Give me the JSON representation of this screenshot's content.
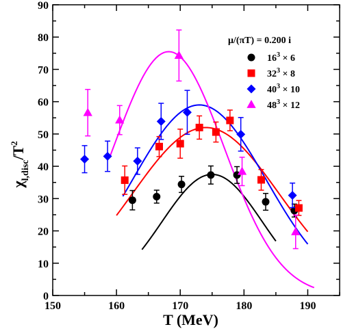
{
  "chart_data": {
    "type": "scatter",
    "xlabel": "T (MeV)",
    "ylabel_main": "χ",
    "ylabel_sub": "l,disc",
    "ylabel_den": "/T",
    "ylabel_exp": "2",
    "xlim": [
      150,
      195
    ],
    "ylim": [
      0,
      90
    ],
    "xticks": [
      150,
      160,
      170,
      180,
      190
    ],
    "yticks": [
      0,
      10,
      20,
      30,
      40,
      50,
      60,
      70,
      80,
      90
    ],
    "grid": false,
    "legend_position": "top-right",
    "annotation": "μ/(πT) = 0.200 i",
    "series": [
      {
        "name_base": "16",
        "name_exp": "3",
        "name_rest": " × 6",
        "color": "#000000",
        "marker": "circle",
        "points": [
          {
            "x": 162.5,
            "y": 29.5,
            "err": 3.0
          },
          {
            "x": 166.3,
            "y": 30.6,
            "err": 2.0
          },
          {
            "x": 170.2,
            "y": 34.4,
            "err": 2.5
          },
          {
            "x": 174.8,
            "y": 37.3,
            "err": 2.8
          },
          {
            "x": 178.9,
            "y": 37.3,
            "err": 2.6
          },
          {
            "x": 183.4,
            "y": 29.0,
            "err": 2.6
          },
          {
            "x": 187.9,
            "y": 26.3,
            "err": 2.0
          }
        ],
        "curve": {
          "xmin": 164.0,
          "xmax": 185.0,
          "peak": 37.5,
          "center": 175.0,
          "width": 7.9,
          "base": 0
        }
      },
      {
        "name_base": "32",
        "name_exp": "3",
        "name_rest": " × 8",
        "color": "#ff0000",
        "marker": "square",
        "points": [
          {
            "x": 161.3,
            "y": 35.7,
            "err": 4.4
          },
          {
            "x": 166.7,
            "y": 46.1,
            "err": 3.1
          },
          {
            "x": 170.0,
            "y": 47.0,
            "err": 4.5
          },
          {
            "x": 173.0,
            "y": 52.0,
            "err": 3.6
          },
          {
            "x": 175.6,
            "y": 50.6,
            "err": 3.1
          },
          {
            "x": 177.8,
            "y": 54.2,
            "err": 3.2
          },
          {
            "x": 182.7,
            "y": 35.8,
            "err": 3.2
          },
          {
            "x": 188.6,
            "y": 27.1,
            "err": 2.3
          }
        ],
        "curve": {
          "xmin": 160.0,
          "xmax": 190.0,
          "peak": 52.0,
          "center": 174.0,
          "width": 11.5,
          "base": 0
        }
      },
      {
        "name_base": "40",
        "name_exp": "3",
        "name_rest": " × 10",
        "color": "#0000ff",
        "marker": "diamond",
        "points": [
          {
            "x": 155.0,
            "y": 42.2,
            "err": 4.2
          },
          {
            "x": 158.6,
            "y": 43.1,
            "err": 4.7
          },
          {
            "x": 163.3,
            "y": 41.6,
            "err": 4.1
          },
          {
            "x": 167.0,
            "y": 53.9,
            "err": 5.6
          },
          {
            "x": 171.1,
            "y": 56.7,
            "err": 6.8
          },
          {
            "x": 179.5,
            "y": 49.9,
            "err": 5.2
          },
          {
            "x": 187.6,
            "y": 31.0,
            "err": 3.8
          }
        ],
        "curve": {
          "xmin": 161.0,
          "xmax": 190.0,
          "peak": 59.0,
          "center": 173.0,
          "width": 10.5,
          "base": 0
        }
      },
      {
        "name_base": "48",
        "name_exp": "3",
        "name_rest": " × 12",
        "color": "#ff00ff",
        "marker": "triangle",
        "points": [
          {
            "x": 155.5,
            "y": 56.6,
            "err": 7.2
          },
          {
            "x": 160.5,
            "y": 54.3,
            "err": 4.5
          },
          {
            "x": 169.8,
            "y": 74.3,
            "err": 7.9
          },
          {
            "x": 179.7,
            "y": 38.4,
            "err": 4.4
          },
          {
            "x": 188.1,
            "y": 19.7,
            "err": 5.2
          }
        ],
        "curve": {
          "xmin": 159.0,
          "xmax": 191.0,
          "peak": 75.5,
          "center": 168.2,
          "width": 8.7,
          "base": 0
        }
      }
    ]
  }
}
